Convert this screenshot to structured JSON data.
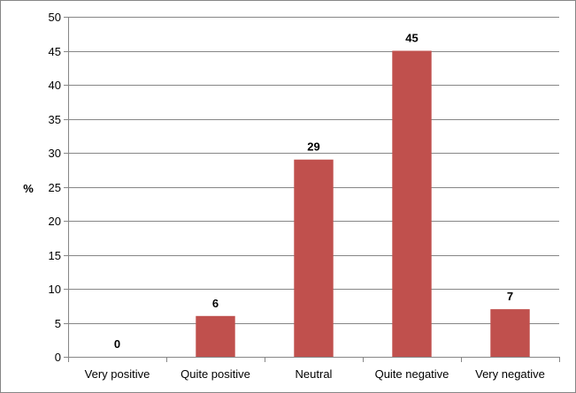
{
  "chart_data": {
    "type": "bar",
    "title": "",
    "xlabel": "",
    "ylabel": "%",
    "categories": [
      "Very positive",
      "Quite positive",
      "Neutral",
      "Quite negative",
      "Very negative"
    ],
    "values": [
      0,
      6,
      29,
      45,
      7
    ],
    "data_labels": [
      "0",
      "6",
      "29",
      "45",
      "7"
    ],
    "ylim": [
      0,
      50
    ],
    "yticks": [
      0,
      5,
      10,
      15,
      20,
      25,
      30,
      35,
      40,
      45,
      50
    ],
    "grid": true,
    "legend": "none",
    "bar_color": "#c0504d",
    "grid_color": "#868686"
  }
}
